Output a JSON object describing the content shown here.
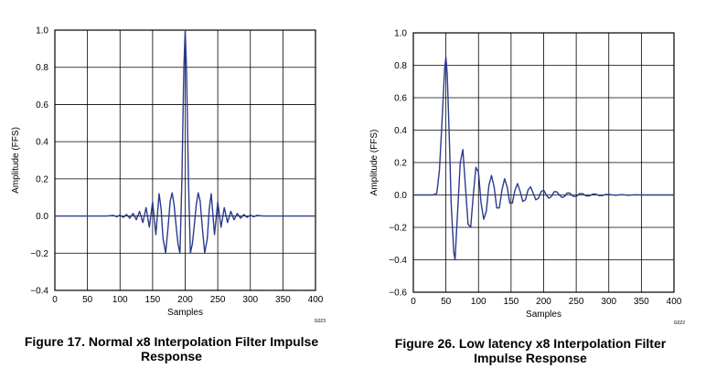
{
  "chart_data": [
    {
      "type": "line",
      "xlabel": "Samples",
      "ylabel": "Amplitude (FFS)",
      "xlim": [
        0,
        400
      ],
      "ylim": [
        -0.4,
        1.0
      ],
      "xticks": [
        "0",
        "50",
        "100",
        "150",
        "200",
        "250",
        "300",
        "350",
        "400"
      ],
      "yticks": [
        "1.0",
        "0.8",
        "0.6",
        "0.4",
        "0.2",
        "0.0",
        "−0.2",
        "−0.4"
      ],
      "grid": true,
      "line_color": "#2b3a8f",
      "code_label": "G023",
      "caption_line1": "Figure 17. Normal x8 Interpolation Filter Impulse",
      "caption_line2": "Response",
      "series": [
        {
          "x": [
            0,
            40,
            60,
            80,
            90,
            95,
            100,
            105,
            110,
            115,
            120,
            125,
            130,
            135,
            140,
            145,
            150,
            155,
            160,
            163,
            166,
            170,
            174,
            177,
            180,
            183,
            186,
            189,
            192,
            195,
            198,
            200,
            202,
            205,
            208,
            211,
            214,
            217,
            220,
            223,
            226,
            230,
            234,
            237,
            240,
            245,
            250,
            255,
            260,
            265,
            270,
            275,
            280,
            285,
            290,
            295,
            300,
            305,
            310,
            320,
            340,
            400
          ],
          "y": [
            0,
            0,
            0,
            0,
            0.003,
            -0.004,
            0.005,
            -0.007,
            0.008,
            -0.012,
            0.014,
            -0.02,
            0.025,
            -0.035,
            0.045,
            -0.06,
            0.075,
            -0.1,
            0.12,
            0.04,
            -0.12,
            -0.2,
            -0.05,
            0.08,
            0.125,
            0.06,
            -0.05,
            -0.15,
            -0.2,
            0.2,
            0.8,
            1.0,
            0.8,
            0.2,
            -0.2,
            -0.15,
            -0.05,
            0.06,
            0.125,
            0.08,
            -0.05,
            -0.2,
            -0.12,
            0.04,
            0.12,
            -0.1,
            0.075,
            -0.06,
            0.045,
            -0.035,
            0.025,
            -0.02,
            0.014,
            -0.012,
            0.008,
            -0.007,
            0.005,
            -0.004,
            0.003,
            0,
            0,
            0
          ]
        }
      ]
    },
    {
      "type": "line",
      "xlabel": "Samples",
      "ylabel": "Amplitude (FFS)",
      "xlim": [
        0,
        400
      ],
      "ylim": [
        -0.6,
        1.0
      ],
      "xticks": [
        "0",
        "50",
        "100",
        "150",
        "200",
        "250",
        "300",
        "350",
        "400"
      ],
      "yticks": [
        "1.0",
        "0.8",
        "0.6",
        "0.4",
        "0.2",
        "0.0",
        "−0.2",
        "−0.4",
        "−0.6"
      ],
      "grid": true,
      "line_color": "#2b3a8f",
      "code_label": "G022",
      "caption_line1": "Figure 26. Low latency x8 Interpolation Filter",
      "caption_line2": "Impulse Response",
      "series": [
        {
          "x": [
            0,
            30,
            36,
            40,
            44,
            48,
            50,
            52,
            56,
            58,
            62,
            64,
            68,
            72,
            76,
            80,
            84,
            88,
            92,
            96,
            100,
            104,
            108,
            112,
            116,
            120,
            124,
            128,
            132,
            136,
            140,
            144,
            148,
            152,
            156,
            160,
            164,
            168,
            172,
            176,
            180,
            184,
            188,
            192,
            196,
            200,
            204,
            208,
            212,
            216,
            220,
            224,
            228,
            232,
            236,
            240,
            245,
            250,
            255,
            260,
            265,
            270,
            275,
            280,
            285,
            290,
            295,
            300,
            310,
            320,
            330,
            340,
            350,
            360,
            400
          ],
          "y": [
            0,
            0,
            0.01,
            0.15,
            0.45,
            0.78,
            0.85,
            0.75,
            0.25,
            -0.05,
            -0.35,
            -0.4,
            -0.1,
            0.2,
            0.28,
            0.05,
            -0.18,
            -0.2,
            0.0,
            0.17,
            0.14,
            -0.05,
            -0.15,
            -0.1,
            0.06,
            0.12,
            0.05,
            -0.08,
            -0.08,
            0.03,
            0.1,
            0.05,
            -0.05,
            -0.05,
            0.03,
            0.07,
            0.02,
            -0.04,
            -0.03,
            0.03,
            0.05,
            0.01,
            -0.03,
            -0.02,
            0.02,
            0.03,
            0.0,
            -0.02,
            -0.01,
            0.02,
            0.02,
            0.0,
            -0.015,
            -0.01,
            0.012,
            0.012,
            -0.008,
            -0.01,
            0.008,
            0.008,
            -0.006,
            -0.006,
            0.005,
            0.005,
            -0.004,
            -0.004,
            0.003,
            0.003,
            -0.002,
            0.002,
            -0.002,
            0.001,
            0,
            0,
            0
          ]
        }
      ]
    }
  ]
}
